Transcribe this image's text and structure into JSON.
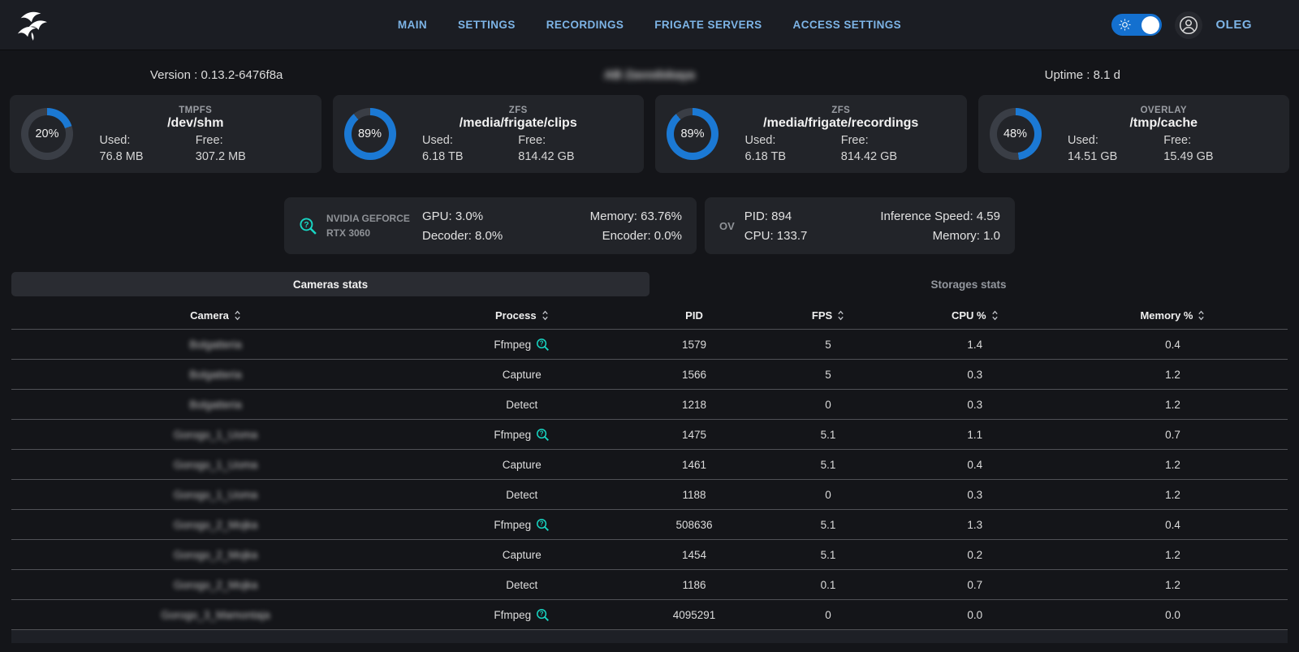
{
  "labels": {
    "used": "Used:",
    "free": "Free:"
  },
  "header": {
    "nav_items": [
      "MAIN",
      "SETTINGS",
      "RECORDINGS",
      "FRIGATE SERVERS",
      "ACCESS SETTINGS"
    ],
    "username": "OLEG"
  },
  "info_bar": {
    "version": "Version : 0.13.2-6476f8a",
    "server_name_blurred": "AB Zavodskaya",
    "uptime": "Uptime : 8.1 d"
  },
  "storage_cards": [
    {
      "fs_type": "TMPFS",
      "path": "/dev/shm",
      "percent": 20,
      "percent_label": "20%",
      "used": "76.8 MB",
      "free": "307.2 MB"
    },
    {
      "fs_type": "ZFS",
      "path": "/media/frigate/clips",
      "percent": 89,
      "percent_label": "89%",
      "used": "6.18 TB",
      "free": "814.42 GB"
    },
    {
      "fs_type": "ZFS",
      "path": "/media/frigate/recordings",
      "percent": 89,
      "percent_label": "89%",
      "used": "6.18 TB",
      "free": "814.42 GB"
    },
    {
      "fs_type": "OVERLAY",
      "path": "/tmp/cache",
      "percent": 48,
      "percent_label": "48%",
      "used": "14.51 GB",
      "free": "15.49 GB"
    }
  ],
  "gpu_card": {
    "name_line1": "NVIDIA GEFORCE",
    "name_line2": "RTX 3060",
    "gpu": "GPU: 3.0%",
    "decoder": "Decoder: 8.0%",
    "memory": "Memory: 63.76%",
    "encoder": "Encoder: 0.0%"
  },
  "detector_card": {
    "label": "OV",
    "pid": "PID: 894",
    "cpu": "CPU: 133.7",
    "inference": "Inference Speed: 4.59",
    "memory": "Memory: 1.0"
  },
  "tabs": [
    {
      "label": "Cameras stats",
      "active": true
    },
    {
      "label": "Storages stats",
      "active": false
    }
  ],
  "table": {
    "columns": [
      {
        "label": "Camera",
        "sortable": true
      },
      {
        "label": "Process",
        "sortable": true
      },
      {
        "label": "PID",
        "sortable": false
      },
      {
        "label": "FPS",
        "sortable": true
      },
      {
        "label": "CPU %",
        "sortable": true
      },
      {
        "label": "Memory %",
        "sortable": true
      }
    ],
    "rows": [
      {
        "camera": "Bolgatteria",
        "camera_blurred": true,
        "process": "Ffmpeg",
        "info_icon": true,
        "pid": "1579",
        "fps": "5",
        "cpu": "1.4",
        "memory": "0.4"
      },
      {
        "camera": "Bolgatteria",
        "camera_blurred": true,
        "process": "Capture",
        "info_icon": false,
        "pid": "1566",
        "fps": "5",
        "cpu": "0.3",
        "memory": "1.2"
      },
      {
        "camera": "Bolgatteria",
        "camera_blurred": true,
        "process": "Detect",
        "info_icon": false,
        "pid": "1218",
        "fps": "0",
        "cpu": "0.3",
        "memory": "1.2"
      },
      {
        "camera": "Gorogo_1_Uoma",
        "camera_blurred": true,
        "process": "Ffmpeg",
        "info_icon": true,
        "pid": "1475",
        "fps": "5.1",
        "cpu": "1.1",
        "memory": "0.7"
      },
      {
        "camera": "Gorogo_1_Uoma",
        "camera_blurred": true,
        "process": "Capture",
        "info_icon": false,
        "pid": "1461",
        "fps": "5.1",
        "cpu": "0.4",
        "memory": "1.2"
      },
      {
        "camera": "Gorogo_1_Uoma",
        "camera_blurred": true,
        "process": "Detect",
        "info_icon": false,
        "pid": "1188",
        "fps": "0",
        "cpu": "0.3",
        "memory": "1.2"
      },
      {
        "camera": "Gorogo_2_Mojka",
        "camera_blurred": true,
        "process": "Ffmpeg",
        "info_icon": true,
        "pid": "508636",
        "fps": "5.1",
        "cpu": "1.3",
        "memory": "0.4"
      },
      {
        "camera": "Gorogo_2_Mojka",
        "camera_blurred": true,
        "process": "Capture",
        "info_icon": false,
        "pid": "1454",
        "fps": "5.1",
        "cpu": "0.2",
        "memory": "1.2"
      },
      {
        "camera": "Gorogo_2_Mojka",
        "camera_blurred": true,
        "process": "Detect",
        "info_icon": false,
        "pid": "1186",
        "fps": "0.1",
        "cpu": "0.7",
        "memory": "1.2"
      },
      {
        "camera": "Gorogo_3_Mamontaja",
        "camera_blurred": true,
        "process": "Ffmpeg",
        "info_icon": true,
        "pid": "4095291",
        "fps": "0",
        "cpu": "0.0",
        "memory": "0.0"
      }
    ]
  },
  "colors": {
    "accent_blue": "#1b79d4",
    "donut_track": "#3a3e46",
    "nav_link_blue": "#7db4e6",
    "teal_icon": "#18d6c4"
  }
}
